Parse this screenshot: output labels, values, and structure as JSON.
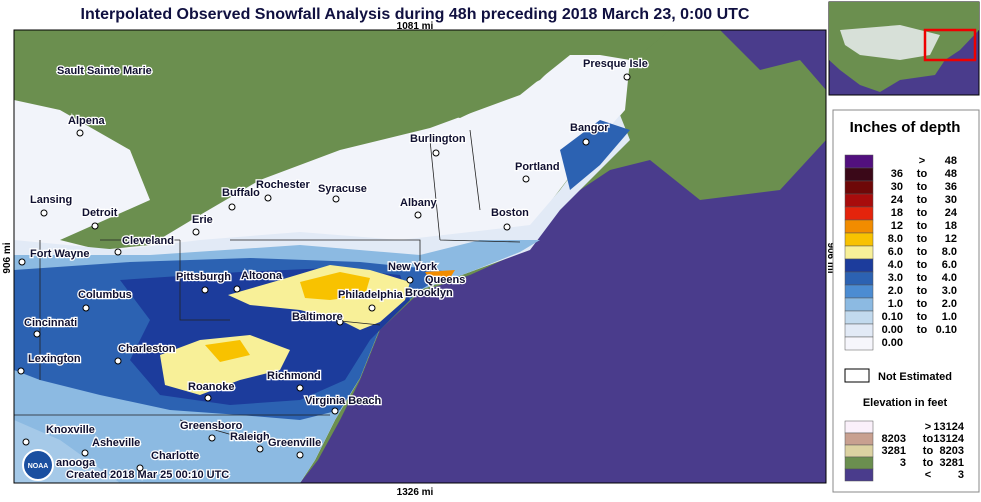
{
  "header": {
    "title": "Interpolated Observed Snowfall Analysis during 48h preceding 2018 March 23, 0:00 UTC"
  },
  "map": {
    "top_distance": "1081 mi",
    "bottom_distance": "1326 mi",
    "left_distance": "906 mi",
    "right_distance": "906 mi",
    "credit": "Created 2018 Mar 25  00:10 UTC",
    "logo": "NOAA",
    "cities": [
      "Sault Sainte Marie",
      "Presque Isle",
      "Alpena",
      "Burlington",
      "Bangor",
      "Rochester",
      "Syracuse",
      "Buffalo",
      "Portland",
      "Lansing",
      "Detroit",
      "Albany",
      "Boston",
      "Erie",
      "Cleveland",
      "Fort Wayne",
      "New York",
      "Queens",
      "Pittsburgh",
      "Altoona",
      "Brooklyn",
      "Columbus",
      "Philadelphia",
      "Baltimore",
      "Cincinnati",
      "Charleston",
      "Lexington",
      "Richmond",
      "Roanoke",
      "Virginia Beach",
      "Knoxville",
      "Greensboro",
      "Asheville",
      "Raleigh",
      "Greenville",
      "Charlotte",
      "anooga"
    ]
  },
  "legend": {
    "title": "Inches of depth",
    "depth": [
      {
        "color": "#52107e",
        "word": ">",
        "max": "48"
      },
      {
        "color": "#3a0818",
        "min": "36",
        "word": "to",
        "max": "48"
      },
      {
        "color": "#6e0808",
        "min": "30",
        "word": "to",
        "max": "36"
      },
      {
        "color": "#a80c0c",
        "min": "24",
        "word": "to",
        "max": "30"
      },
      {
        "color": "#e4240c",
        "min": "18",
        "word": "to",
        "max": "24"
      },
      {
        "color": "#f28c00",
        "min": "12",
        "word": "to",
        "max": "18"
      },
      {
        "color": "#f8c200",
        "min": "8.0",
        "word": "to",
        "max": "12"
      },
      {
        "color": "#f8f098",
        "min": "6.0",
        "word": "to",
        "max": "8.0"
      },
      {
        "color": "#1c3c9c",
        "min": "4.0",
        "word": "to",
        "max": "6.0"
      },
      {
        "color": "#2c62b2",
        "min": "3.0",
        "word": "to",
        "max": "4.0"
      },
      {
        "color": "#4c8cd2",
        "min": "2.0",
        "word": "to",
        "max": "3.0"
      },
      {
        "color": "#8cbae2",
        "min": "1.0",
        "word": "to",
        "max": "2.0"
      },
      {
        "color": "#c2daee",
        "min": "0.10",
        "word": "to",
        "max": "1.0"
      },
      {
        "color": "#e2eaf6",
        "min": "0.00",
        "word": "to",
        "max": "0.10"
      },
      {
        "color": "#f6f6fc",
        "min": "0.00"
      }
    ],
    "not_estimated": "Not Estimated",
    "elevation_title": "Elevation in feet",
    "elevation": [
      {
        "color": "#faf0fa",
        "word": ">",
        "max": "13124"
      },
      {
        "color": "#c8a090",
        "min": "8203",
        "word": "to",
        "max": "13124"
      },
      {
        "color": "#dcd2a2",
        "min": "3281",
        "word": "to",
        "max": "8203"
      },
      {
        "color": "#6b8f4f",
        "min": "3",
        "word": "to",
        "max": "3281"
      },
      {
        "color": "#4a3c8c",
        "word": "<",
        "max": "3"
      }
    ]
  }
}
